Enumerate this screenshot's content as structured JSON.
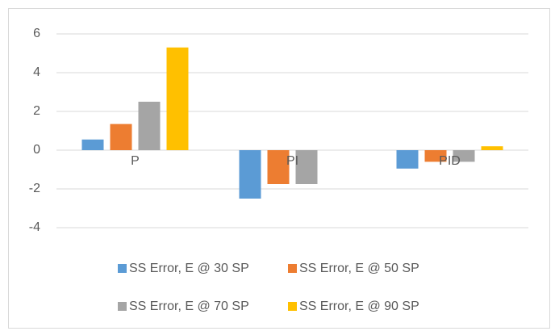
{
  "chart_data": {
    "type": "bar",
    "categories": [
      "P",
      "PI",
      "PID"
    ],
    "series": [
      {
        "name": "SS Error, E @ 30 SP",
        "color": "#5b9bd5",
        "values": [
          0.55,
          -2.5,
          -0.95
        ]
      },
      {
        "name": "SS Error, E @ 50 SP",
        "color": "#ed7d31",
        "values": [
          1.35,
          -1.75,
          -0.6
        ]
      },
      {
        "name": "SS Error, E @ 70 SP",
        "color": "#a5a5a5",
        "values": [
          2.5,
          -1.75,
          -0.6
        ]
      },
      {
        "name": "SS Error, E @ 90 SP",
        "color": "#ffc000",
        "values": [
          5.3,
          0,
          0.2
        ]
      }
    ],
    "ylim": [
      -4,
      6
    ],
    "yticks": [
      -4,
      -2,
      0,
      2,
      4,
      6
    ],
    "grid": true,
    "legend": "bottom"
  }
}
